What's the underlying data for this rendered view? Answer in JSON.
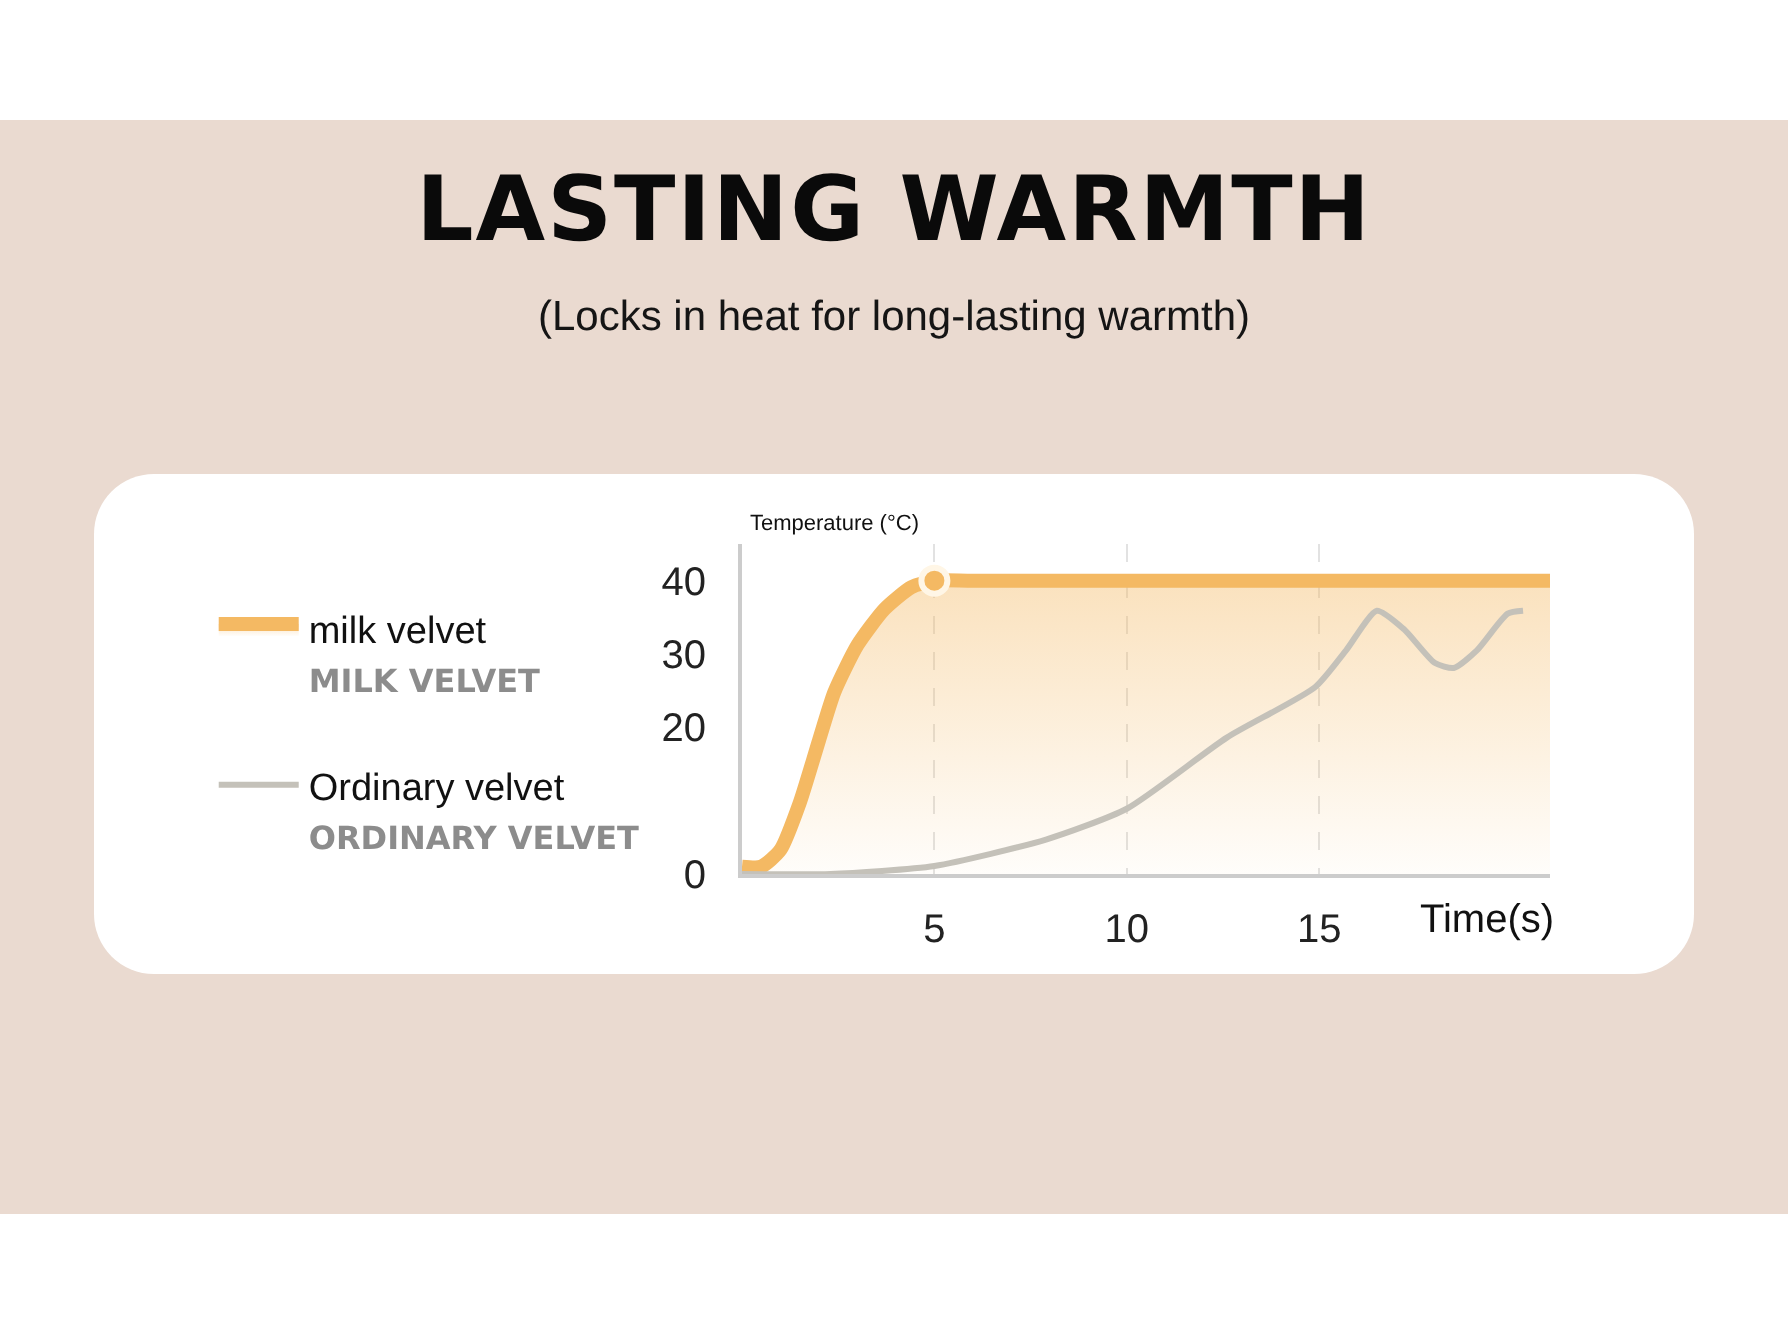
{
  "chart_data": {
    "type": "line",
    "title": "LASTING WARMTH",
    "subtitle": "(Locks in heat for long-lasting warmth)",
    "xlabel": "Time(s)",
    "ylabel": "Temperature (°C)",
    "xlim": [
      0,
      21
    ],
    "xticks": [
      5,
      10,
      15
    ],
    "ylim": [
      0,
      45
    ],
    "yticks": [
      0,
      20,
      30,
      40
    ],
    "grid": "x",
    "legend": "left",
    "line_style": "solid",
    "series": [
      {
        "name": "milk velvet\nMILK VELVET",
        "type": "area",
        "color": "#f4b963",
        "x": [
          0,
          0.5,
          1,
          1.5,
          2,
          2.4,
          3,
          3.7,
          4.4,
          5,
          6,
          21
        ],
        "values": [
          1,
          1,
          3.3,
          9.7,
          18.2,
          24.8,
          31.2,
          36.1,
          39.1,
          40,
          40,
          40
        ]
      },
      {
        "name": "Ordinary velvet\nORDINARY VELVET",
        "color": "#c4c1b9",
        "x": [
          0,
          2.3,
          5,
          7.9,
          10,
          12.6,
          14.9,
          15.7,
          16.5,
          17.2,
          18,
          18.5,
          19.1,
          19.9,
          20.3
        ],
        "values": [
          0,
          0,
          1.1,
          4.7,
          8.9,
          18.6,
          25.5,
          30.5,
          35.9,
          33.4,
          28.8,
          28.1,
          30.5,
          35.5,
          35.9
        ]
      },
      {
        "type": "scatter",
        "marker": "circle",
        "color": "#f4b963",
        "x": [
          5
        ],
        "values": [
          40
        ]
      }
    ]
  }
}
